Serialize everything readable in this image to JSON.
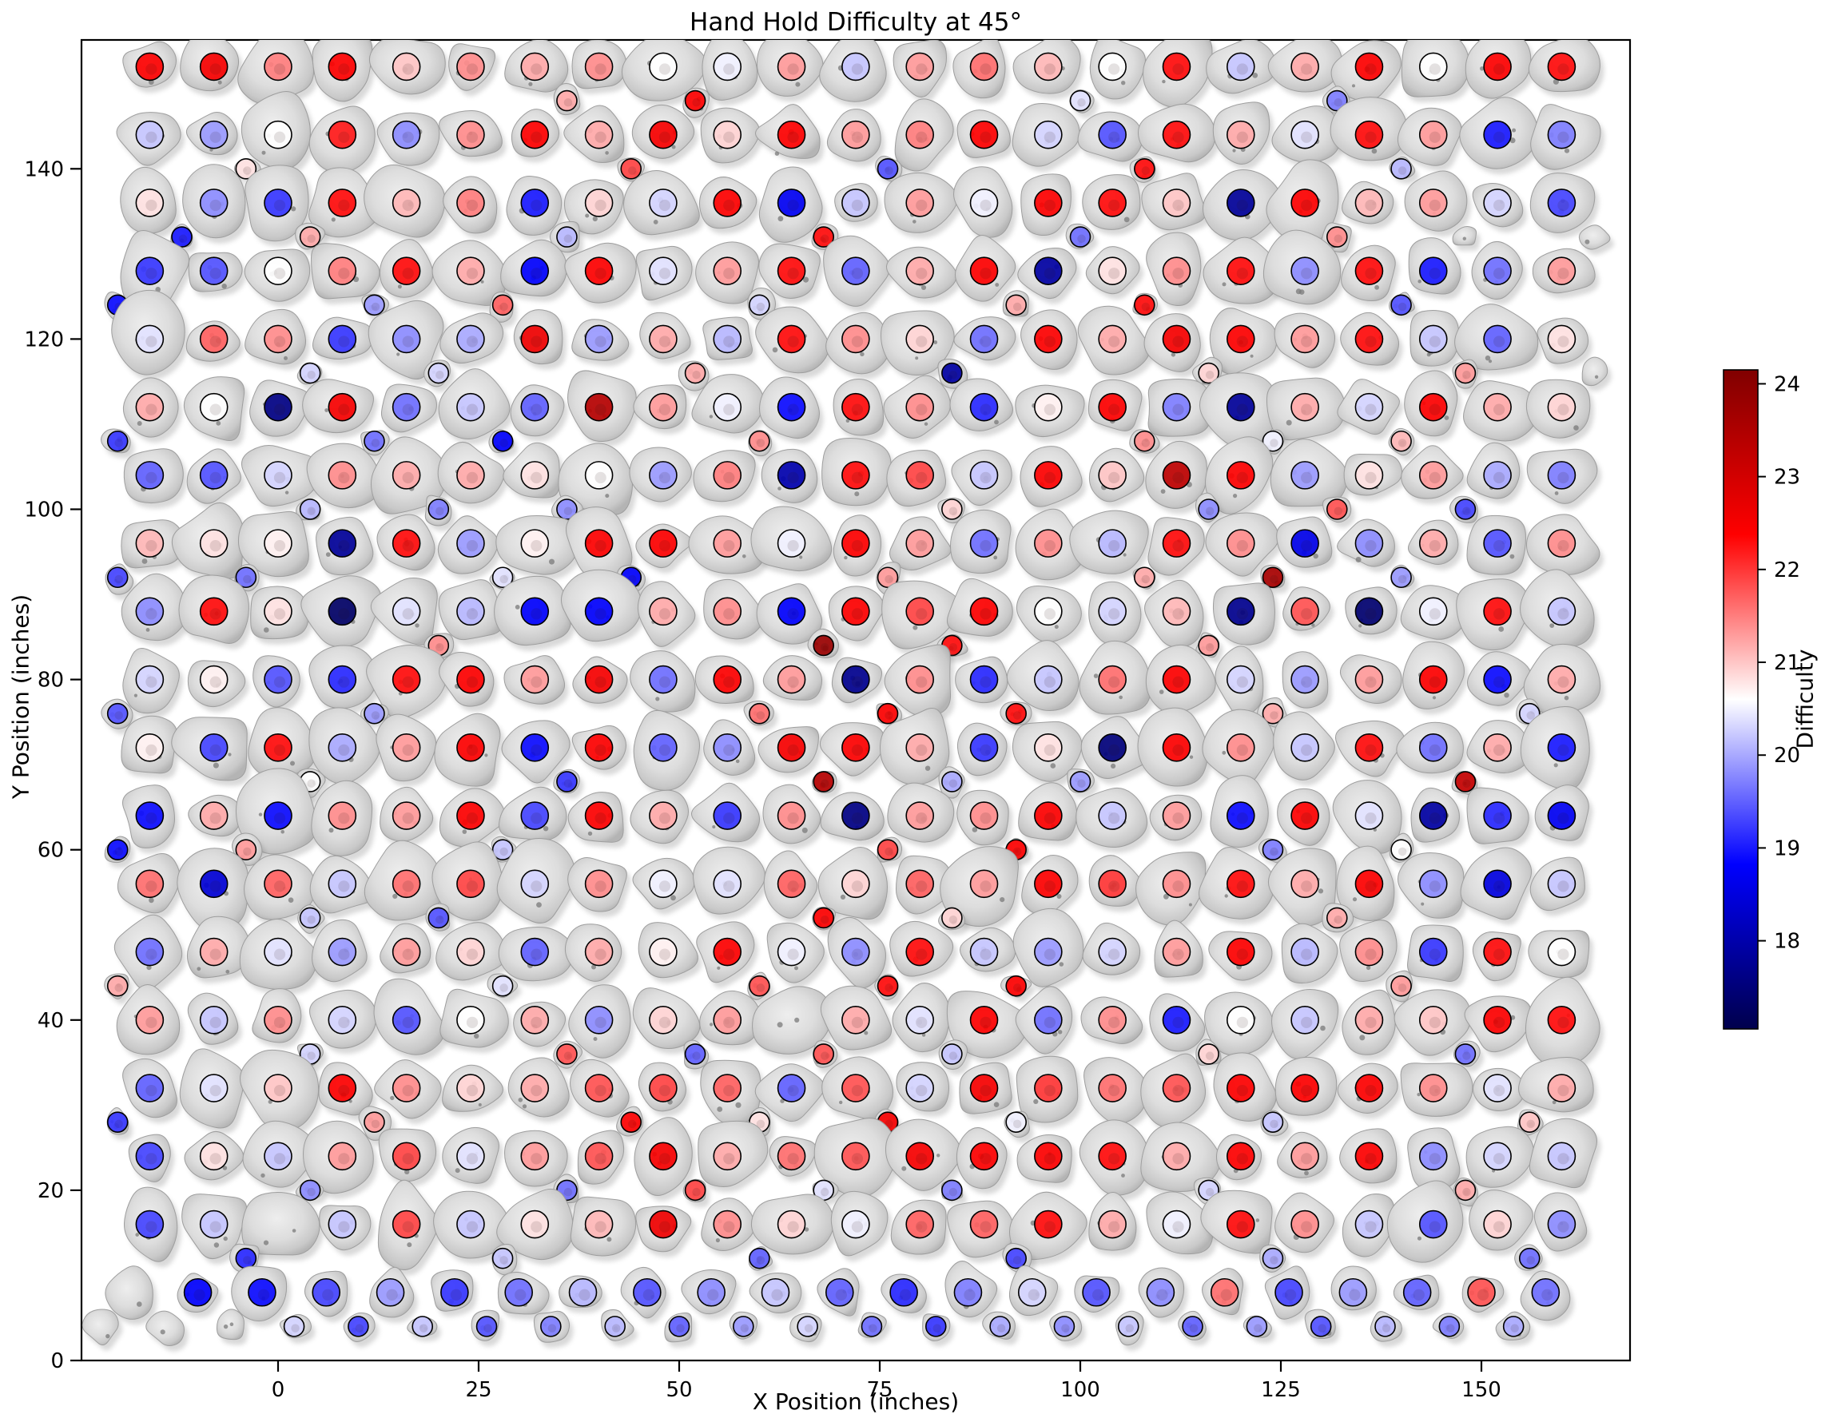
{
  "title": "Hand Hold Difficulty at 45°",
  "xlabel": "X Position (inches)",
  "ylabel": "Y Position (inches)",
  "axes": {
    "xticks": [
      0,
      25,
      50,
      75,
      100,
      125,
      150
    ],
    "yticks": [
      0,
      20,
      40,
      60,
      80,
      100,
      120,
      140
    ],
    "xlim": [
      -24.5,
      168.5
    ],
    "ylim": [
      0,
      155.1
    ]
  },
  "colorbar": {
    "label": "Difficulty",
    "ticks": [
      18,
      19,
      20,
      21,
      22,
      23,
      24
    ],
    "vmin": 17.05,
    "vmax": 24.15,
    "colormap": "seismic"
  },
  "chart_data": {
    "type": "scatter",
    "title": "Hand Hold Difficulty at 45°",
    "xlabel": "X Position (inches)",
    "ylabel": "Y Position (inches)",
    "value_label": "Difficulty",
    "colormap": "seismic",
    "vmin": 17.05,
    "vmax": 24.15,
    "legend": "none",
    "grid": false,
    "rows": [
      {
        "y": 152,
        "x0": -16,
        "dx": 8,
        "kind": "main",
        "v": [
          22.4,
          22.5,
          21.5,
          22.4,
          21.0,
          21.4,
          21.2,
          21.4,
          20.6,
          20.5,
          21.3,
          20.2,
          21.3,
          21.6,
          21.1,
          20.6,
          22.3,
          20.2,
          21.2,
          22.4,
          20.6,
          22.4,
          22.3
        ]
      },
      {
        "y": 148,
        "x0": -12,
        "dx": 16,
        "kind": "aux",
        "v": [
          -1,
          -1,
          -1,
          21.2,
          22.4,
          -1,
          -1,
          20.4,
          -1,
          19.7,
          -1,
          -1
        ]
      },
      {
        "y": 144,
        "x0": -16,
        "dx": 8,
        "kind": "main",
        "v": [
          20.2,
          19.9,
          20.6,
          22.2,
          19.8,
          21.4,
          22.4,
          21.2,
          22.5,
          20.9,
          22.4,
          21.3,
          21.5,
          22.4,
          20.3,
          19.4,
          22.3,
          21.2,
          20.4,
          22.3,
          21.3,
          19.0,
          19.7
        ]
      },
      {
        "y": 140,
        "x0": -20,
        "dx": 16,
        "kind": "aux",
        "v": [
          -1,
          20.8,
          -1,
          -1,
          21.9,
          -1,
          19.4,
          -1,
          22.3,
          -1,
          20.1,
          -1
        ]
      },
      {
        "y": 136,
        "x0": -16,
        "dx": 8,
        "kind": "main",
        "v": [
          20.8,
          19.8,
          19.2,
          22.3,
          21.1,
          21.5,
          19.0,
          20.9,
          20.3,
          22.4,
          18.7,
          20.2,
          21.3,
          20.5,
          22.4,
          22.3,
          21.0,
          17.8,
          22.4,
          21.1,
          21.3,
          20.3,
          19.3
        ]
      },
      {
        "y": 132,
        "x0": -12,
        "dx": 16,
        "kind": "aux",
        "v": [
          19.0,
          21.2,
          -1,
          20.1,
          -1,
          22.3,
          -1,
          19.6,
          -1,
          21.4,
          null,
          null
        ]
      },
      {
        "y": 128,
        "x0": -16,
        "dx": 8,
        "kind": "main",
        "v": [
          19.2,
          19.4,
          20.6,
          21.5,
          22.3,
          21.2,
          18.8,
          22.4,
          20.4,
          21.3,
          22.3,
          19.5,
          21.2,
          22.4,
          17.9,
          20.8,
          21.4,
          22.3,
          19.8,
          22.3,
          19.0,
          19.6,
          21.3
        ]
      },
      {
        "y": 124,
        "x0": -20,
        "dx": 16,
        "kind": "aux",
        "v": [
          18.9,
          -1,
          19.9,
          21.7,
          -1,
          20.3,
          -1,
          21.2,
          22.3,
          -1,
          19.4,
          -1
        ]
      },
      {
        "y": 120,
        "x0": -16,
        "dx": 8,
        "kind": "main",
        "v": [
          20.4,
          21.7,
          21.4,
          19.2,
          19.8,
          20.0,
          22.6,
          19.9,
          21.2,
          20.1,
          22.3,
          21.4,
          20.9,
          19.6,
          22.4,
          21.2,
          22.5,
          22.4,
          21.3,
          22.3,
          20.2,
          19.5,
          20.8
        ]
      },
      {
        "y": 116,
        "x0": -12,
        "dx": 16,
        "kind": "aux",
        "v": [
          -1,
          20.3,
          20.3,
          -1,
          21.2,
          -1,
          17.9,
          -1,
          20.9,
          -1,
          21.3,
          null
        ]
      },
      {
        "y": 112,
        "x0": -16,
        "dx": 8,
        "kind": "main",
        "v": [
          21.2,
          20.6,
          17.6,
          22.5,
          19.6,
          20.2,
          19.5,
          23.4,
          21.3,
          20.5,
          18.9,
          22.3,
          21.4,
          19.1,
          20.7,
          22.4,
          19.7,
          17.8,
          21.2,
          20.3,
          22.4,
          21.2,
          20.9
        ]
      },
      {
        "y": 108,
        "x0": -20,
        "dx": 16,
        "kind": "aux",
        "v": [
          19.2,
          -1,
          19.6,
          18.8,
          -1,
          21.4,
          -1,
          -1,
          21.4,
          20.5,
          21.1,
          -1
        ]
      },
      {
        "y": 104,
        "x0": -16,
        "dx": 8,
        "kind": "main",
        "v": [
          19.5,
          19.4,
          20.3,
          21.4,
          21.2,
          21.2,
          20.8,
          20.6,
          19.9,
          21.5,
          18.0,
          22.3,
          21.9,
          20.2,
          22.4,
          21.0,
          23.3,
          22.4,
          19.9,
          20.8,
          21.3,
          20.0,
          19.7
        ]
      },
      {
        "y": 100,
        "x0": -12,
        "dx": 16,
        "kind": "aux",
        "v": [
          -1,
          20.1,
          19.7,
          19.8,
          -1,
          -1,
          20.9,
          -1,
          19.8,
          21.8,
          19.3,
          -1
        ]
      },
      {
        "y": 96,
        "x0": -16,
        "dx": 8,
        "kind": "main",
        "v": [
          21.1,
          20.8,
          20.7,
          17.8,
          22.3,
          19.9,
          20.7,
          22.4,
          22.4,
          21.3,
          20.5,
          22.4,
          21.3,
          19.6,
          21.4,
          20.1,
          22.3,
          21.4,
          18.6,
          19.8,
          21.2,
          19.4,
          21.4
        ]
      },
      {
        "y": 92,
        "x0": -20,
        "dx": 16,
        "kind": "aux",
        "v": [
          19.3,
          19.6,
          -1,
          20.4,
          18.8,
          -1,
          21.3,
          -1,
          21.2,
          23.6,
          19.9,
          -1
        ]
      },
      {
        "y": 88,
        "x0": -16,
        "dx": 8,
        "kind": "main",
        "v": [
          19.8,
          22.3,
          20.8,
          17.3,
          20.4,
          20.1,
          18.8,
          18.8,
          21.2,
          21.4,
          18.8,
          22.4,
          21.9,
          22.4,
          20.6,
          20.3,
          21.1,
          17.7,
          21.8,
          17.4,
          20.5,
          22.3,
          20.2
        ]
      },
      {
        "y": 84,
        "x0": -12,
        "dx": 16,
        "kind": "aux",
        "v": [
          -1,
          -1,
          21.4,
          -1,
          -1,
          23.8,
          22.3,
          -1,
          21.3,
          -1,
          -1,
          -1
        ]
      },
      {
        "y": 80,
        "x0": -16,
        "dx": 8,
        "kind": "main",
        "v": [
          20.3,
          20.7,
          19.4,
          19.1,
          22.3,
          22.4,
          21.3,
          22.5,
          19.6,
          22.4,
          21.3,
          17.7,
          21.4,
          19.1,
          20.2,
          21.6,
          22.4,
          20.3,
          19.9,
          21.3,
          22.4,
          18.9,
          21.2
        ]
      },
      {
        "y": 76,
        "x0": -20,
        "dx": 16,
        "kind": "aux",
        "v": [
          19.4,
          -1,
          19.9,
          -1,
          -1,
          21.6,
          22.4,
          22.3,
          -1,
          21.2,
          -1,
          20.3
        ]
      },
      {
        "y": 72,
        "x0": -16,
        "dx": 8,
        "kind": "main",
        "v": [
          20.7,
          19.3,
          22.3,
          20.0,
          21.3,
          22.4,
          18.9,
          22.4,
          19.5,
          19.8,
          22.5,
          22.4,
          21.2,
          19.2,
          20.8,
          17.5,
          22.4,
          21.4,
          20.2,
          22.3,
          19.6,
          21.2,
          19.0
        ]
      },
      {
        "y": 68,
        "x0": -12,
        "dx": 16,
        "kind": "aux",
        "v": [
          -1,
          20.6,
          -1,
          19.2,
          -1,
          23.4,
          20.0,
          19.9,
          -1,
          -1,
          23.2,
          -1
        ]
      },
      {
        "y": 64,
        "x0": -16,
        "dx": 8,
        "kind": "main",
        "v": [
          18.9,
          21.2,
          18.9,
          21.4,
          21.3,
          22.4,
          19.3,
          22.4,
          21.2,
          19.2,
          21.4,
          17.6,
          21.3,
          21.4,
          22.4,
          20.2,
          21.3,
          18.9,
          22.4,
          20.4,
          17.9,
          19.1,
          18.7
        ]
      },
      {
        "y": 60,
        "x0": -20,
        "dx": 16,
        "kind": "aux",
        "v": [
          18.9,
          21.3,
          -1,
          20.2,
          -1,
          -1,
          21.9,
          22.4,
          -1,
          19.7,
          20.6,
          -1
        ]
      },
      {
        "y": 56,
        "x0": -16,
        "dx": 8,
        "kind": "main",
        "v": [
          21.6,
          18.4,
          21.7,
          20.2,
          21.6,
          21.9,
          20.3,
          21.4,
          20.5,
          20.4,
          21.7,
          20.9,
          21.7,
          21.3,
          22.4,
          22.0,
          21.4,
          22.3,
          21.2,
          22.4,
          19.8,
          18.5,
          20.2
        ]
      },
      {
        "y": 52,
        "x0": -12,
        "dx": 16,
        "kind": "aux",
        "v": [
          -1,
          20.2,
          19.4,
          -1,
          -1,
          22.4,
          20.9,
          -1,
          -1,
          21.2,
          -1,
          -1
        ]
      },
      {
        "y": 48,
        "x0": -16,
        "dx": 8,
        "kind": "main",
        "v": [
          19.6,
          21.2,
          20.4,
          19.9,
          21.3,
          20.9,
          19.5,
          21.2,
          20.7,
          22.4,
          20.5,
          19.8,
          22.3,
          20.2,
          19.9,
          20.3,
          21.3,
          22.4,
          20.1,
          21.4,
          19.2,
          22.3,
          20.6
        ]
      },
      {
        "y": 44,
        "x0": -20,
        "dx": 16,
        "kind": "aux",
        "v": [
          21.2,
          -1,
          -1,
          20.4,
          -1,
          21.8,
          22.3,
          22.4,
          -1,
          -1,
          21.3,
          -1
        ]
      },
      {
        "y": 40,
        "x0": -16,
        "dx": 8,
        "kind": "main",
        "v": [
          21.3,
          20.2,
          21.4,
          20.3,
          19.4,
          20.6,
          21.2,
          19.8,
          20.9,
          21.3,
          null,
          21.2,
          20.4,
          22.4,
          19.6,
          21.4,
          19.0,
          20.6,
          20.2,
          21.2,
          21.0,
          22.4,
          22.3
        ]
      },
      {
        "y": 36,
        "x0": -12,
        "dx": 16,
        "kind": "aux",
        "v": [
          -1,
          20.3,
          -1,
          21.8,
          19.5,
          21.8,
          20.2,
          -1,
          20.9,
          -1,
          19.6,
          -1
        ]
      },
      {
        "y": 32,
        "x0": -16,
        "dx": 8,
        "kind": "main",
        "v": [
          19.5,
          20.4,
          21.0,
          22.4,
          21.4,
          20.9,
          21.2,
          21.8,
          21.9,
          21.7,
          19.5,
          21.8,
          20.3,
          22.5,
          22.0,
          21.6,
          21.8,
          22.4,
          22.4,
          22.4,
          21.4,
          20.4,
          21.2
        ]
      },
      {
        "y": 28,
        "x0": -20,
        "dx": 16,
        "kind": "aux",
        "v": [
          19.2,
          -1,
          21.3,
          -1,
          22.4,
          20.8,
          22.5,
          20.5,
          -1,
          20.2,
          -1,
          21.0
        ]
      },
      {
        "y": 24,
        "x0": -16,
        "dx": 8,
        "kind": "main",
        "v": [
          19.3,
          20.8,
          20.2,
          21.3,
          21.9,
          20.4,
          21.3,
          21.8,
          22.5,
          21.2,
          21.6,
          21.8,
          22.5,
          22.4,
          22.4,
          22.3,
          21.2,
          22.4,
          21.3,
          22.4,
          19.8,
          20.3,
          20.2
        ]
      },
      {
        "y": 20,
        "x0": -12,
        "dx": 16,
        "kind": "aux",
        "v": [
          -1,
          19.8,
          -1,
          19.6,
          21.9,
          20.4,
          19.7,
          -1,
          20.3,
          -1,
          21.2,
          -1
        ]
      },
      {
        "y": 16,
        "x0": -16,
        "dx": 8,
        "kind": "main",
        "v": [
          19.3,
          20.2,
          null,
          20.2,
          21.9,
          20.2,
          20.8,
          21.1,
          22.6,
          21.4,
          20.9,
          20.5,
          21.7,
          21.7,
          22.3,
          21.2,
          20.5,
          22.3,
          21.4,
          20.2,
          19.4,
          20.9,
          19.8
        ]
      },
      {
        "y": 12,
        "x0": -20,
        "dx": 16,
        "kind": "aux",
        "v": [
          -1,
          19.1,
          -1,
          20.2,
          -1,
          19.5,
          -1,
          19.3,
          -1,
          20.0,
          -1,
          19.6
        ]
      },
      {
        "y": 8,
        "x0": -18,
        "dx": 8,
        "kind": "kick",
        "v": [
          null,
          18.8,
          18.9,
          19.3,
          19.9,
          19.2,
          19.6,
          20.1,
          19.4,
          19.8,
          20.2,
          19.5,
          19.1,
          19.7,
          20.3,
          19.4,
          19.8,
          21.6,
          19.3,
          19.9,
          19.5,
          21.8,
          19.6
        ]
      },
      {
        "y": 4,
        "x0": -22,
        "dx": 8,
        "kind": "foot",
        "v": [
          null,
          null,
          null,
          20.3,
          19.3,
          20.2,
          19.4,
          19.7,
          20.1,
          19.5,
          19.9,
          20.3,
          19.6,
          19.2,
          20.0,
          19.8,
          20.2,
          19.5,
          19.9,
          19.4,
          20.1,
          19.7,
          20.0
        ]
      }
    ]
  }
}
